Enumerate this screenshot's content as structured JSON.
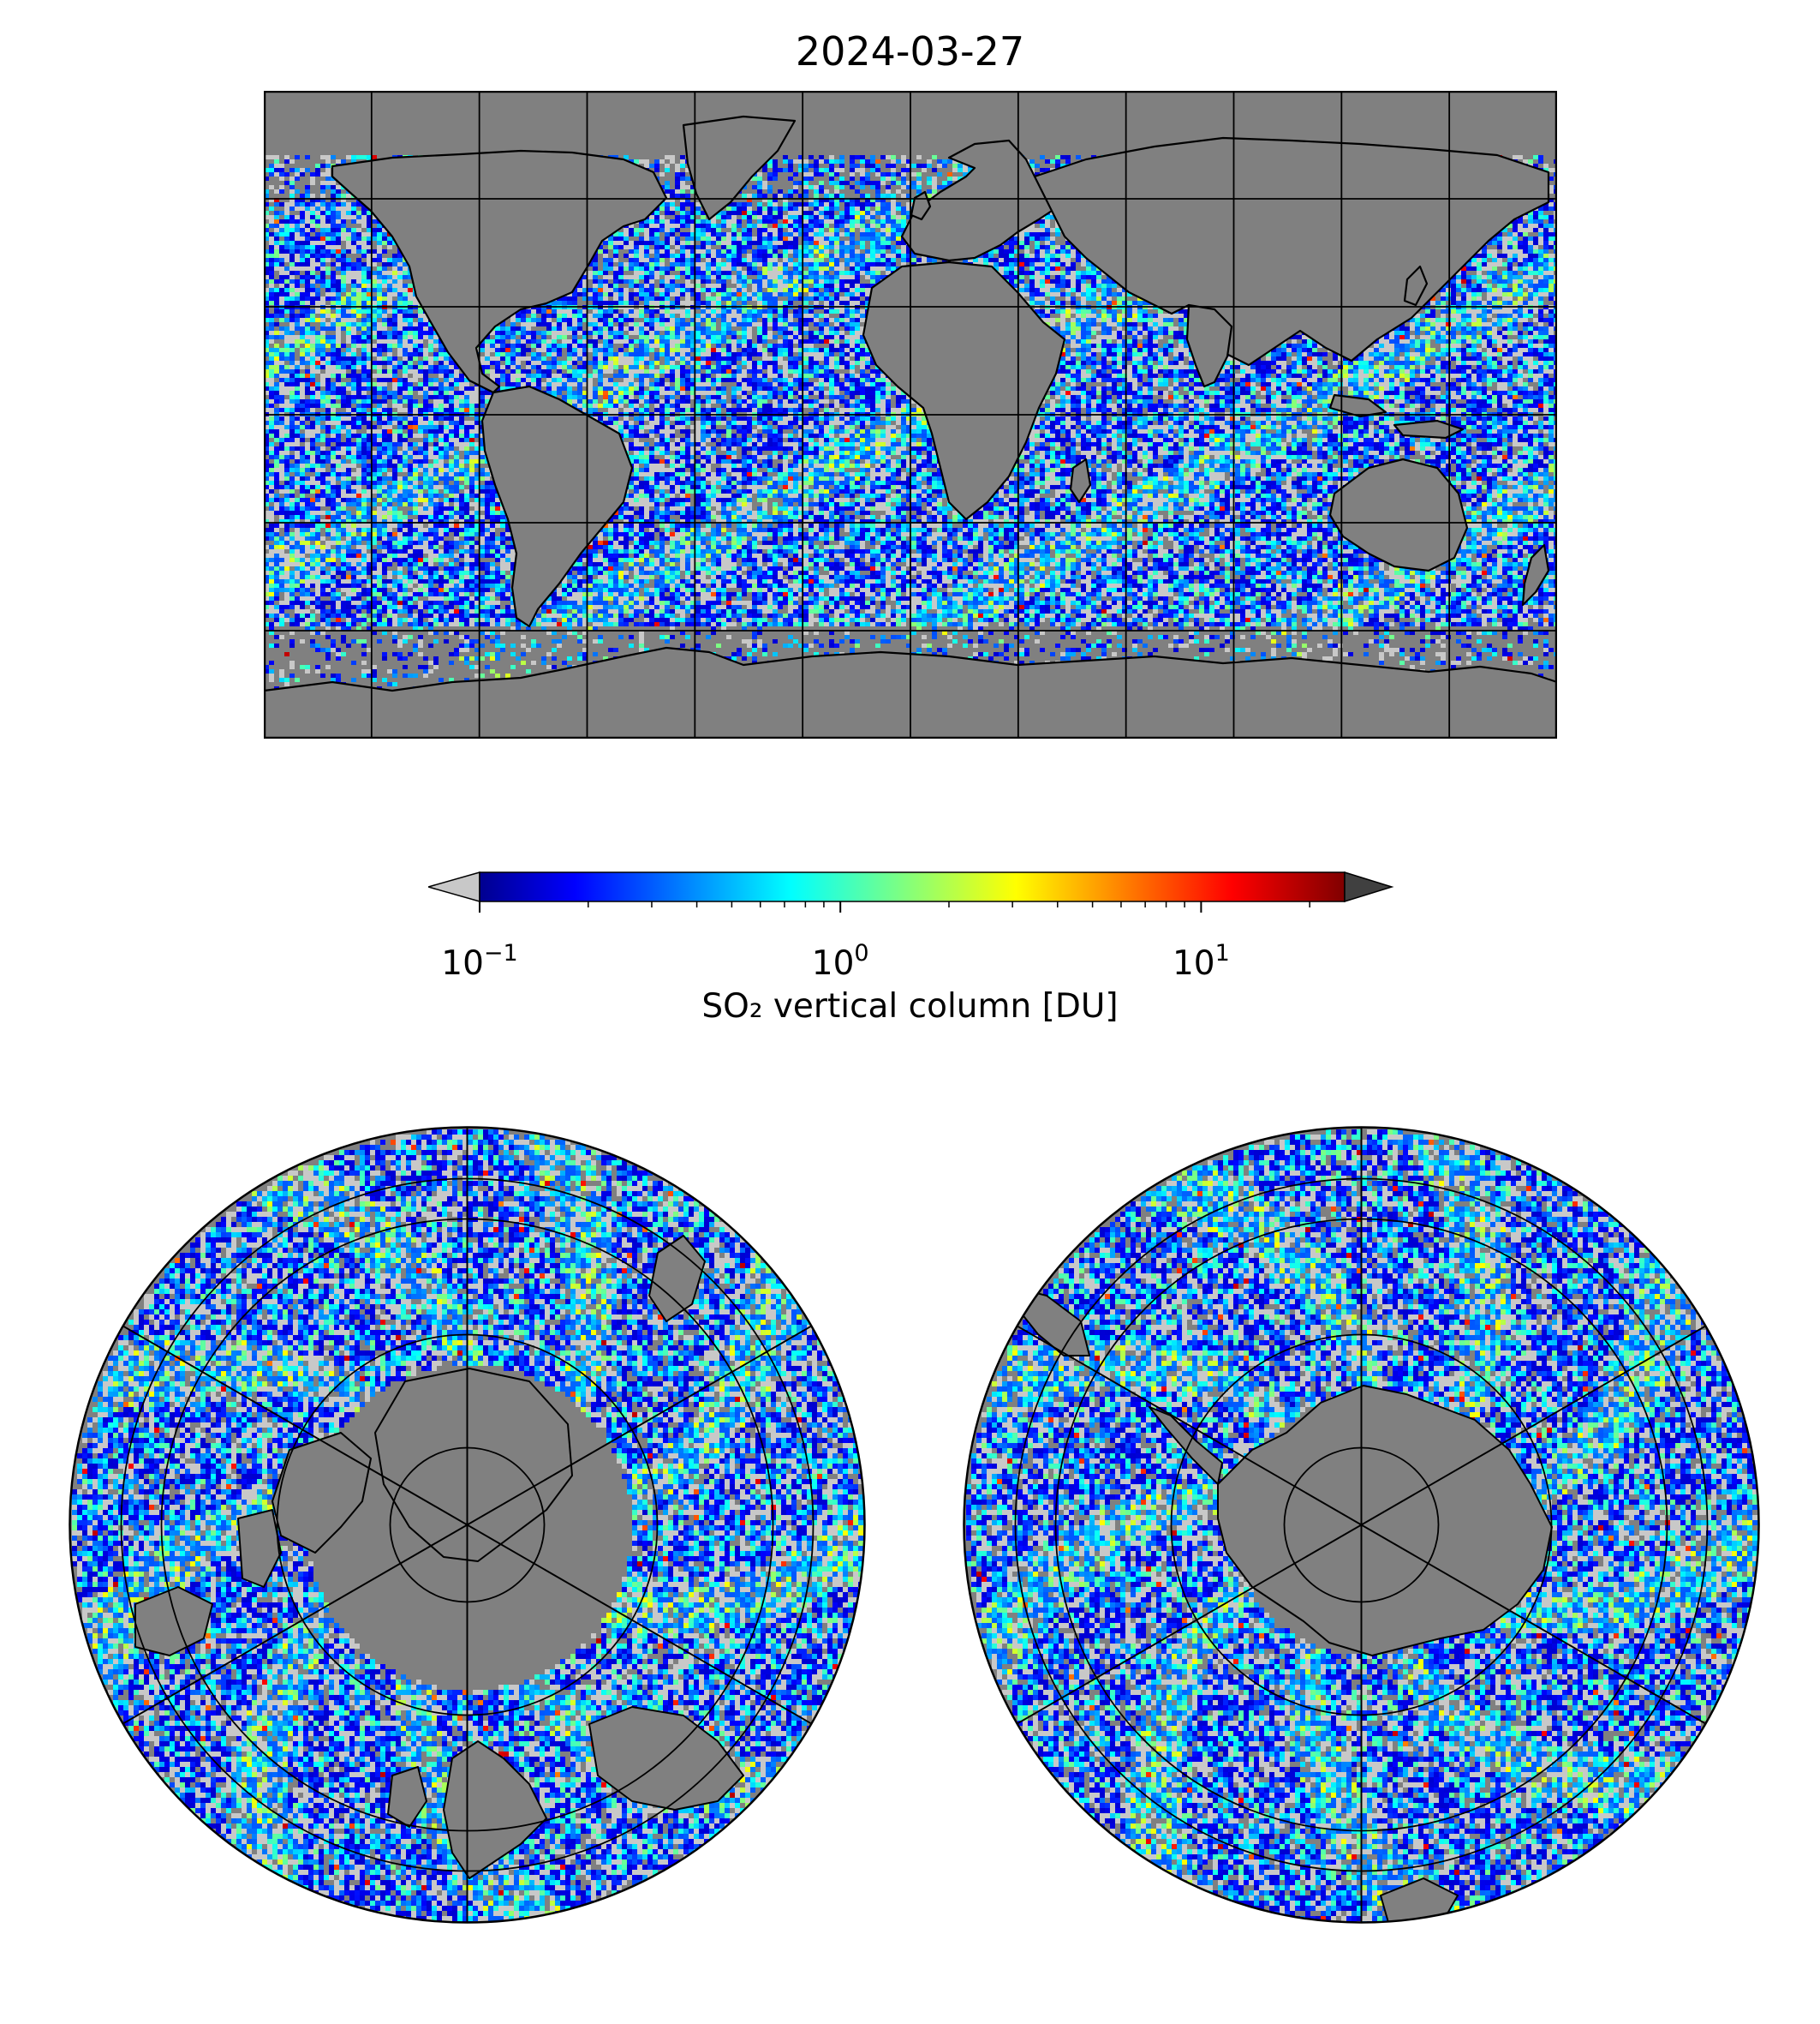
{
  "title": "2024-03-27",
  "colorbar": {
    "label": "SO₂ vertical column [DU]",
    "scale": "log",
    "range": [
      0.1,
      25
    ],
    "extend": "both",
    "under_color": "#c8c8c8",
    "over_color": "#404040",
    "colormap": "jet",
    "ticks": [
      {
        "value": 0.1,
        "base": "10",
        "exp": "−1"
      },
      {
        "value": 1,
        "base": "10",
        "exp": "0"
      },
      {
        "value": 10,
        "base": "10",
        "exp": "1"
      }
    ]
  },
  "maps": [
    {
      "panel": "global",
      "projection": "equirectangular",
      "lon_range": [
        -180,
        180
      ],
      "lat_range": [
        -90,
        90
      ],
      "gridline_spacing_deg": 30
    },
    {
      "panel": "north-polar",
      "projection": "polar-stereographic",
      "center": "North Pole"
    },
    {
      "panel": "south-polar",
      "projection": "polar-stereographic",
      "center": "South Pole"
    }
  ],
  "colors": {
    "no_data": "#808080",
    "below_range": "#c8c8c8",
    "coastline": "#000000"
  }
}
